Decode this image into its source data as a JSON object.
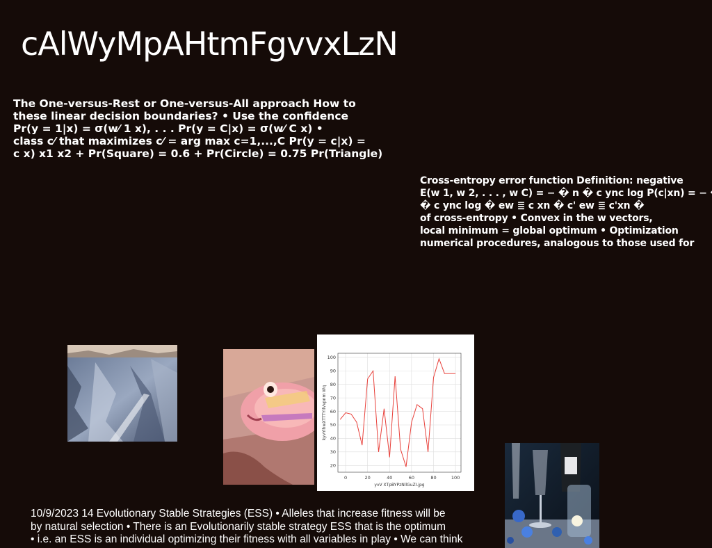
{
  "slide": {
    "title": "cAlWyMpAHtmFgvvxLzN",
    "block1_lines": [
      "The One-versus-Rest or One-versus-All approach How to",
      "these linear decision boundaries? • Use the confidence",
      "Pr(y = 1|x) = σ(w⁄ 1 x), . . . Pr(y = C|x) = σ(w⁄ C x) •",
      "class c⁄ that maximizes c⁄ = arg max c=1,...,C Pr(y = c|x) =",
      "c x) x1 x2 + Pr(Square) = 0.6 + Pr(Circle) = 0.75 Pr(Triangle)"
    ],
    "block2_lines": [
      "Cross-entropy error function Definition: negative",
      "E(w 1, w 2, . . . , w C) = − � n � c ync log P(c|xn) = − �",
      "� c ync log � ew ≣ c xn � c' ew ≣ c'xn �",
      "of cross-entropy • Convex in the w vectors,",
      "local minimum = global optimum • Optimization",
      "numerical procedures, analogous to those used for"
    ],
    "block3_lines": [
      "10/9/2023 14 Evolutionary Stable Strategies (ESS) • Alleles that increase fitness will be",
      "by natural selection • There is an Evolutionarily stable strategy ESS that is the optimum",
      "• i.e. an ESS is an individual optimizing their fitness with all variables in play • We can think"
    ]
  },
  "images": {
    "photo1": "rocky-mountain-landscape-photo",
    "photo2": "pink-fish-photo",
    "photo3": "glasses-and-bottle-photo"
  },
  "chart_data": {
    "type": "line",
    "color": "#e8403a",
    "xlabel": "yvV XTpBYPzNllGuZI.jpg",
    "ylabel": "kyvYlhwXTTTYIlVvpnm Wq",
    "xlim": [
      -7,
      105
    ],
    "ylim": [
      15,
      103
    ],
    "x_ticks": [
      0,
      20,
      40,
      60,
      80,
      100
    ],
    "y_ticks": [
      20,
      30,
      40,
      50,
      60,
      70,
      80,
      90,
      100
    ],
    "x": [
      -5,
      0,
      5,
      10,
      15,
      20,
      25,
      30,
      35,
      40,
      45,
      50,
      55,
      60,
      65,
      70,
      75,
      80,
      85,
      90,
      95,
      100
    ],
    "y": [
      54,
      59,
      58,
      52,
      35,
      84,
      90,
      30,
      62,
      26,
      86,
      32,
      19,
      52,
      65,
      62,
      30,
      85,
      99,
      88,
      88,
      88
    ],
    "grid": true
  }
}
